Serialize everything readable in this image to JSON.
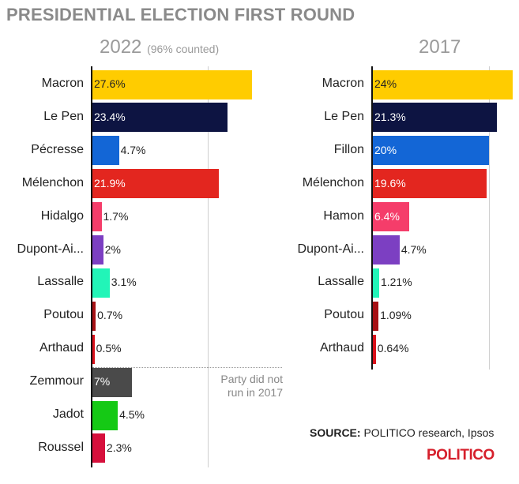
{
  "page": {
    "title": "PRESIDENTIAL ELECTION FIRST ROUND",
    "note": [
      "Party did not",
      "run in 2017"
    ],
    "source_label": "SOURCE:",
    "source_text": " POLITICO research, Ipsos",
    "logo": "POLITICO"
  },
  "chart_data": [
    {
      "type": "bar",
      "orientation": "horizontal",
      "title": "2022",
      "subtitle": "(96% counted)",
      "categories": [
        "Macron",
        "Le Pen",
        "Pécresse",
        "Mélenchon",
        "Hidalgo",
        "Dupont-Ai...",
        "Lassalle",
        "Poutou",
        "Arthaud",
        "Zemmour",
        "Jadot",
        "Roussel"
      ],
      "values": [
        27.6,
        23.4,
        4.7,
        21.9,
        1.7,
        2,
        3.1,
        0.7,
        0.5,
        7,
        4.5,
        2.3
      ],
      "labels": [
        "27.6%",
        "23.4%",
        "4.7%",
        "21.9%",
        "1.7%",
        "2%",
        "3.1%",
        "0.7%",
        "0.5%",
        "7%",
        "4.5%",
        "2.3%"
      ],
      "colors": [
        "#ffcc00",
        "#0d1442",
        "#1366d6",
        "#e3261f",
        "#f53d6a",
        "#7c3fc2",
        "#22f5b8",
        "#a61014",
        "#d9101a",
        "#4a4a4a",
        "#15c915",
        "#d6103c"
      ],
      "label_inside": [
        true,
        true,
        false,
        true,
        false,
        false,
        false,
        false,
        false,
        true,
        false,
        false
      ],
      "xlim": [
        0,
        27.6
      ],
      "grid": true
    },
    {
      "type": "bar",
      "orientation": "horizontal",
      "title": "2017",
      "categories": [
        "Macron",
        "Le Pen",
        "Fillon",
        "Mélenchon",
        "Hamon",
        "Dupont-Ai...",
        "Lassalle",
        "Poutou",
        "Arthaud"
      ],
      "values": [
        24,
        21.3,
        20,
        19.6,
        6.4,
        4.7,
        1.21,
        1.09,
        0.64
      ],
      "labels": [
        "24%",
        "21.3%",
        "20%",
        "19.6%",
        "6.4%",
        "4.7%",
        "1.21%",
        "1.09%",
        "0.64%"
      ],
      "colors": [
        "#ffcc00",
        "#0d1442",
        "#1366d6",
        "#e3261f",
        "#f53d6a",
        "#7c3fc2",
        "#22f5b8",
        "#a61014",
        "#d9101a"
      ],
      "label_inside": [
        true,
        true,
        true,
        true,
        true,
        false,
        false,
        false,
        false
      ],
      "xlim": [
        0,
        24
      ],
      "grid": true
    }
  ]
}
